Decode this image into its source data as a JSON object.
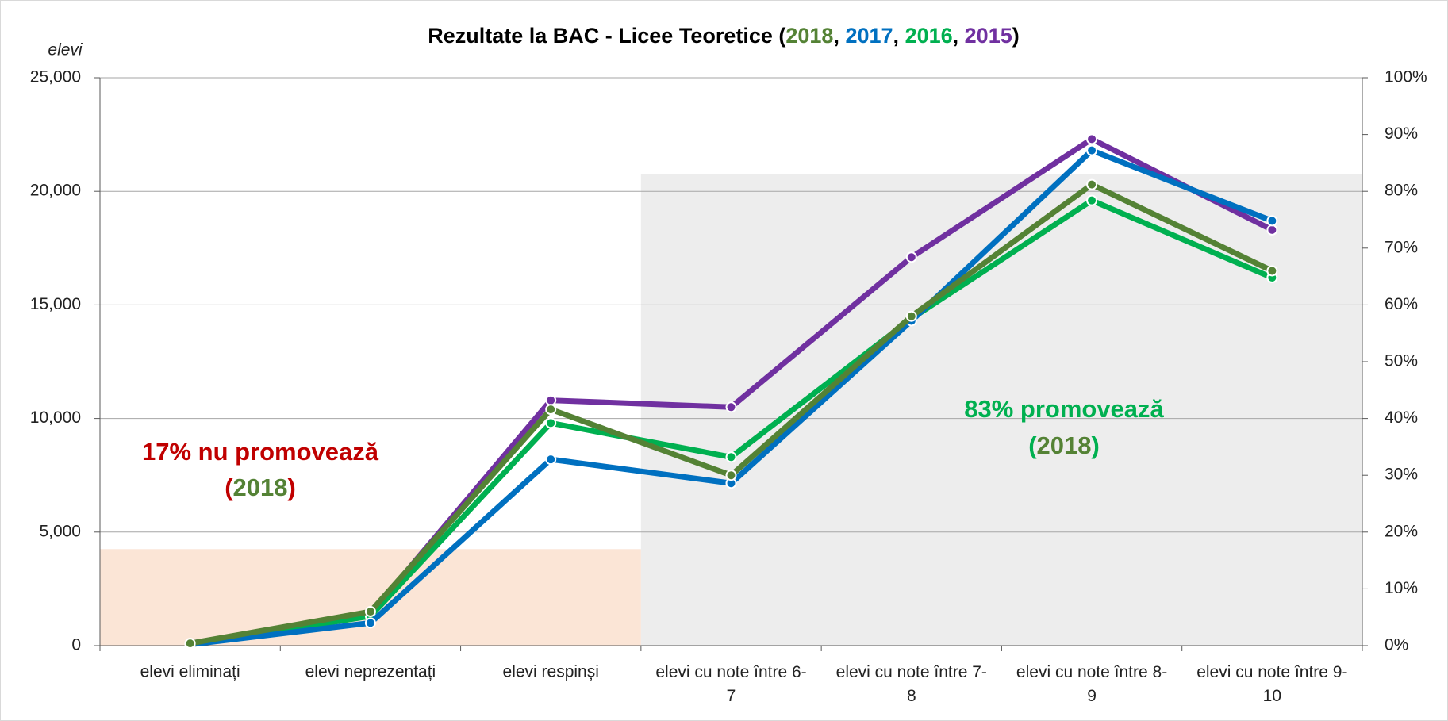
{
  "chart_data": {
    "type": "line",
    "title": "Rezultate la BAC - Licee Teoretice (2018, 2017, 2016, 2015)",
    "ylabel": "elevi",
    "categories": [
      "elevi eliminați",
      "elevi neprezentați",
      "elevi respinși",
      "elevi cu note între 6-7",
      "elevi cu note între 7-8",
      "elevi cu note între 8-9",
      "elevi cu note între 9-10"
    ],
    "series": [
      {
        "name": "2018",
        "color": "#548235",
        "values": [
          100,
          1500,
          10400,
          7500,
          14500,
          20300,
          16500
        ]
      },
      {
        "name": "2017",
        "color": "#0070c0",
        "values": [
          50,
          1000,
          8200,
          7150,
          14300,
          21800,
          18700
        ]
      },
      {
        "name": "2016",
        "color": "#00b050",
        "values": [
          50,
          1300,
          9800,
          8300,
          14400,
          19600,
          16200
        ]
      },
      {
        "name": "2015",
        "color": "#7030a0",
        "values": [
          100,
          1400,
          10800,
          10500,
          17100,
          22300,
          18300
        ]
      }
    ],
    "ylim": [
      0,
      25000
    ],
    "yticks": [
      0,
      {
        "value": 5000,
        "label": "5,000"
      },
      {
        "value": 10000,
        "label": "10,000"
      },
      {
        "value": 15000,
        "label": "15,000"
      },
      {
        "value": 20000,
        "label": "20,000"
      },
      {
        "value": 25000,
        "label": "25,000"
      }
    ],
    "y2lim": [
      0,
      100
    ],
    "y2ticks": [
      {
        "value": 0,
        "label": "0%"
      },
      {
        "value": 10,
        "label": "10%"
      },
      {
        "value": 20,
        "label": "20%"
      },
      {
        "value": 30,
        "label": "30%"
      },
      {
        "value": 40,
        "label": "40%"
      },
      {
        "value": 50,
        "label": "50%"
      },
      {
        "value": 60,
        "label": "60%"
      },
      {
        "value": 70,
        "label": "70%"
      },
      {
        "value": 80,
        "label": "80%"
      },
      {
        "value": 90,
        "label": "90%"
      },
      {
        "value": 100,
        "label": "100%"
      }
    ],
    "grid": true,
    "annotations": [
      {
        "lines": [
          "17% nu promovează",
          "(2018)"
        ],
        "value": 17,
        "color": "#c00000",
        "band_color": "#fbe5d6"
      },
      {
        "lines": [
          "83% promovează",
          "(2018)"
        ],
        "value": 83,
        "color": "#00b050",
        "band_color": "#ededed"
      }
    ]
  }
}
